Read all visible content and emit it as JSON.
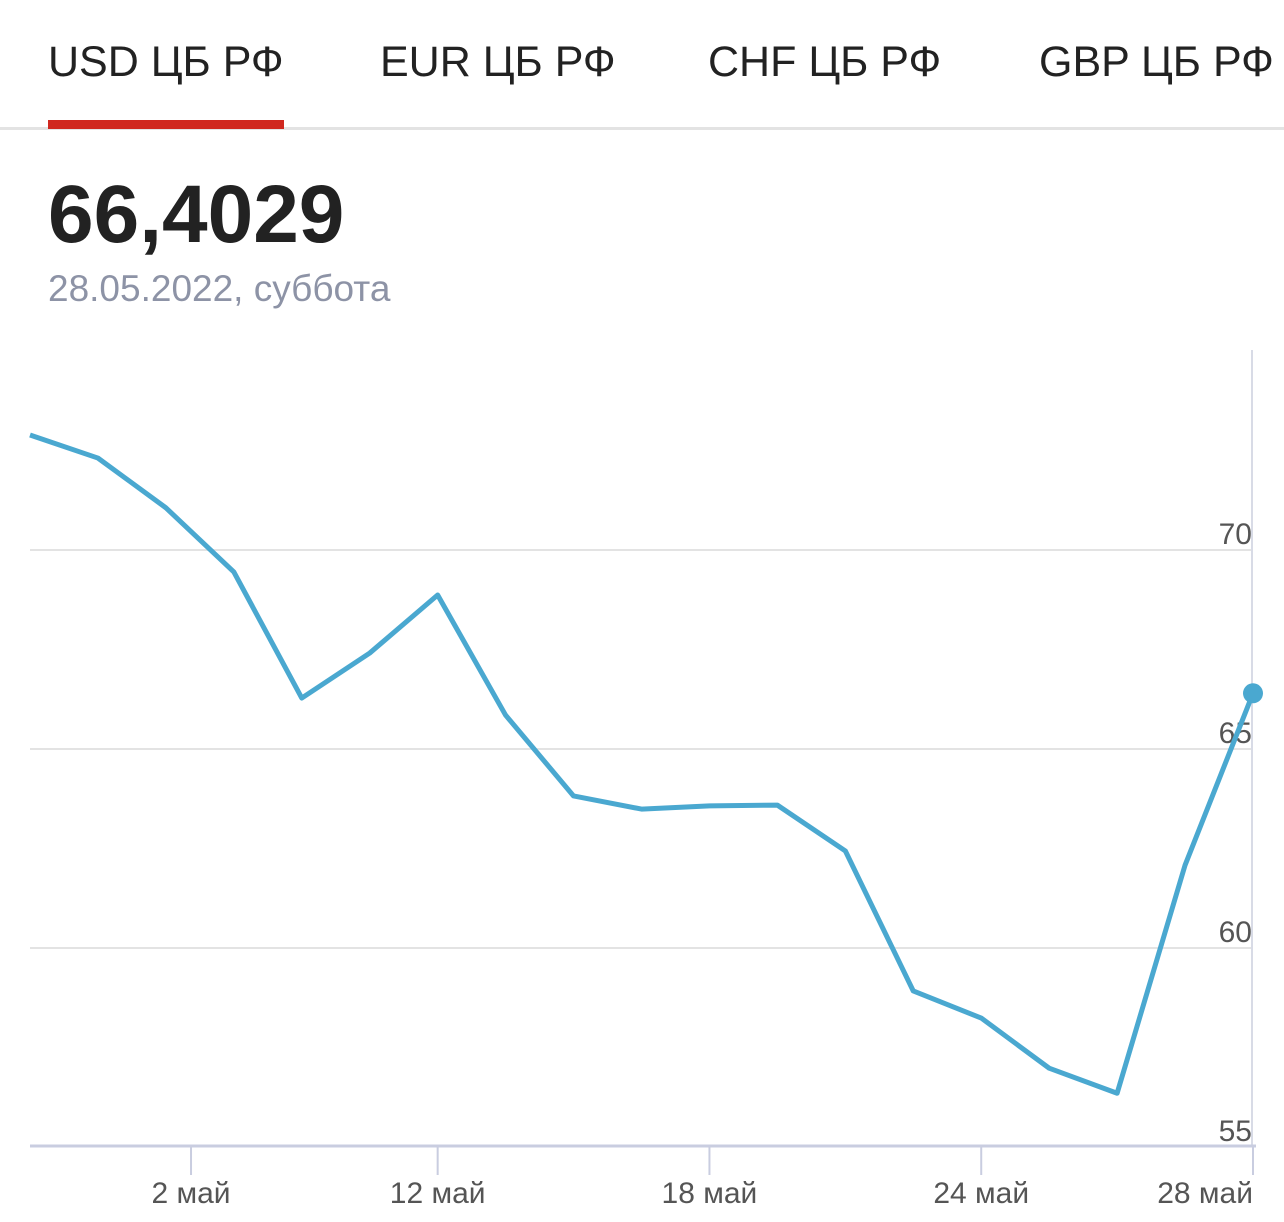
{
  "tabs": [
    {
      "label": "USD ЦБ РФ",
      "active": true
    },
    {
      "label": "EUR ЦБ РФ"
    },
    {
      "label": "CHF ЦБ РФ"
    },
    {
      "label": "GBP ЦБ РФ"
    }
  ],
  "current": {
    "value": "66,4029",
    "date": "28.05.2022, суббота"
  },
  "colors": {
    "line": "#4aa8d0",
    "accent": "#d0281f",
    "grid": "#e3e3e3"
  },
  "chart_data": {
    "type": "line",
    "title": "",
    "xlabel": "",
    "ylabel": "",
    "values": [
      72.89,
      72.31,
      71.06,
      69.45,
      66.28,
      67.41,
      68.87,
      65.85,
      63.82,
      63.49,
      63.57,
      63.59,
      62.44,
      58.92,
      58.24,
      56.98,
      56.35,
      62.08,
      66.4
    ],
    "ylim": [
      55,
      75
    ],
    "y_ticks": [
      {
        "label": "70",
        "value": 70
      },
      {
        "label": "65",
        "value": 65
      },
      {
        "label": "60",
        "value": 60
      },
      {
        "label": "55",
        "value": 55
      }
    ],
    "x_ticks": [
      {
        "label": "2 май",
        "index": 2.37
      },
      {
        "label": "12 май",
        "index": 6
      },
      {
        "label": "18 май",
        "index": 10
      },
      {
        "label": "24 май",
        "index": 14
      },
      {
        "label": "28 май",
        "index": 18
      }
    ],
    "grid": true,
    "last_point_marker": true
  }
}
